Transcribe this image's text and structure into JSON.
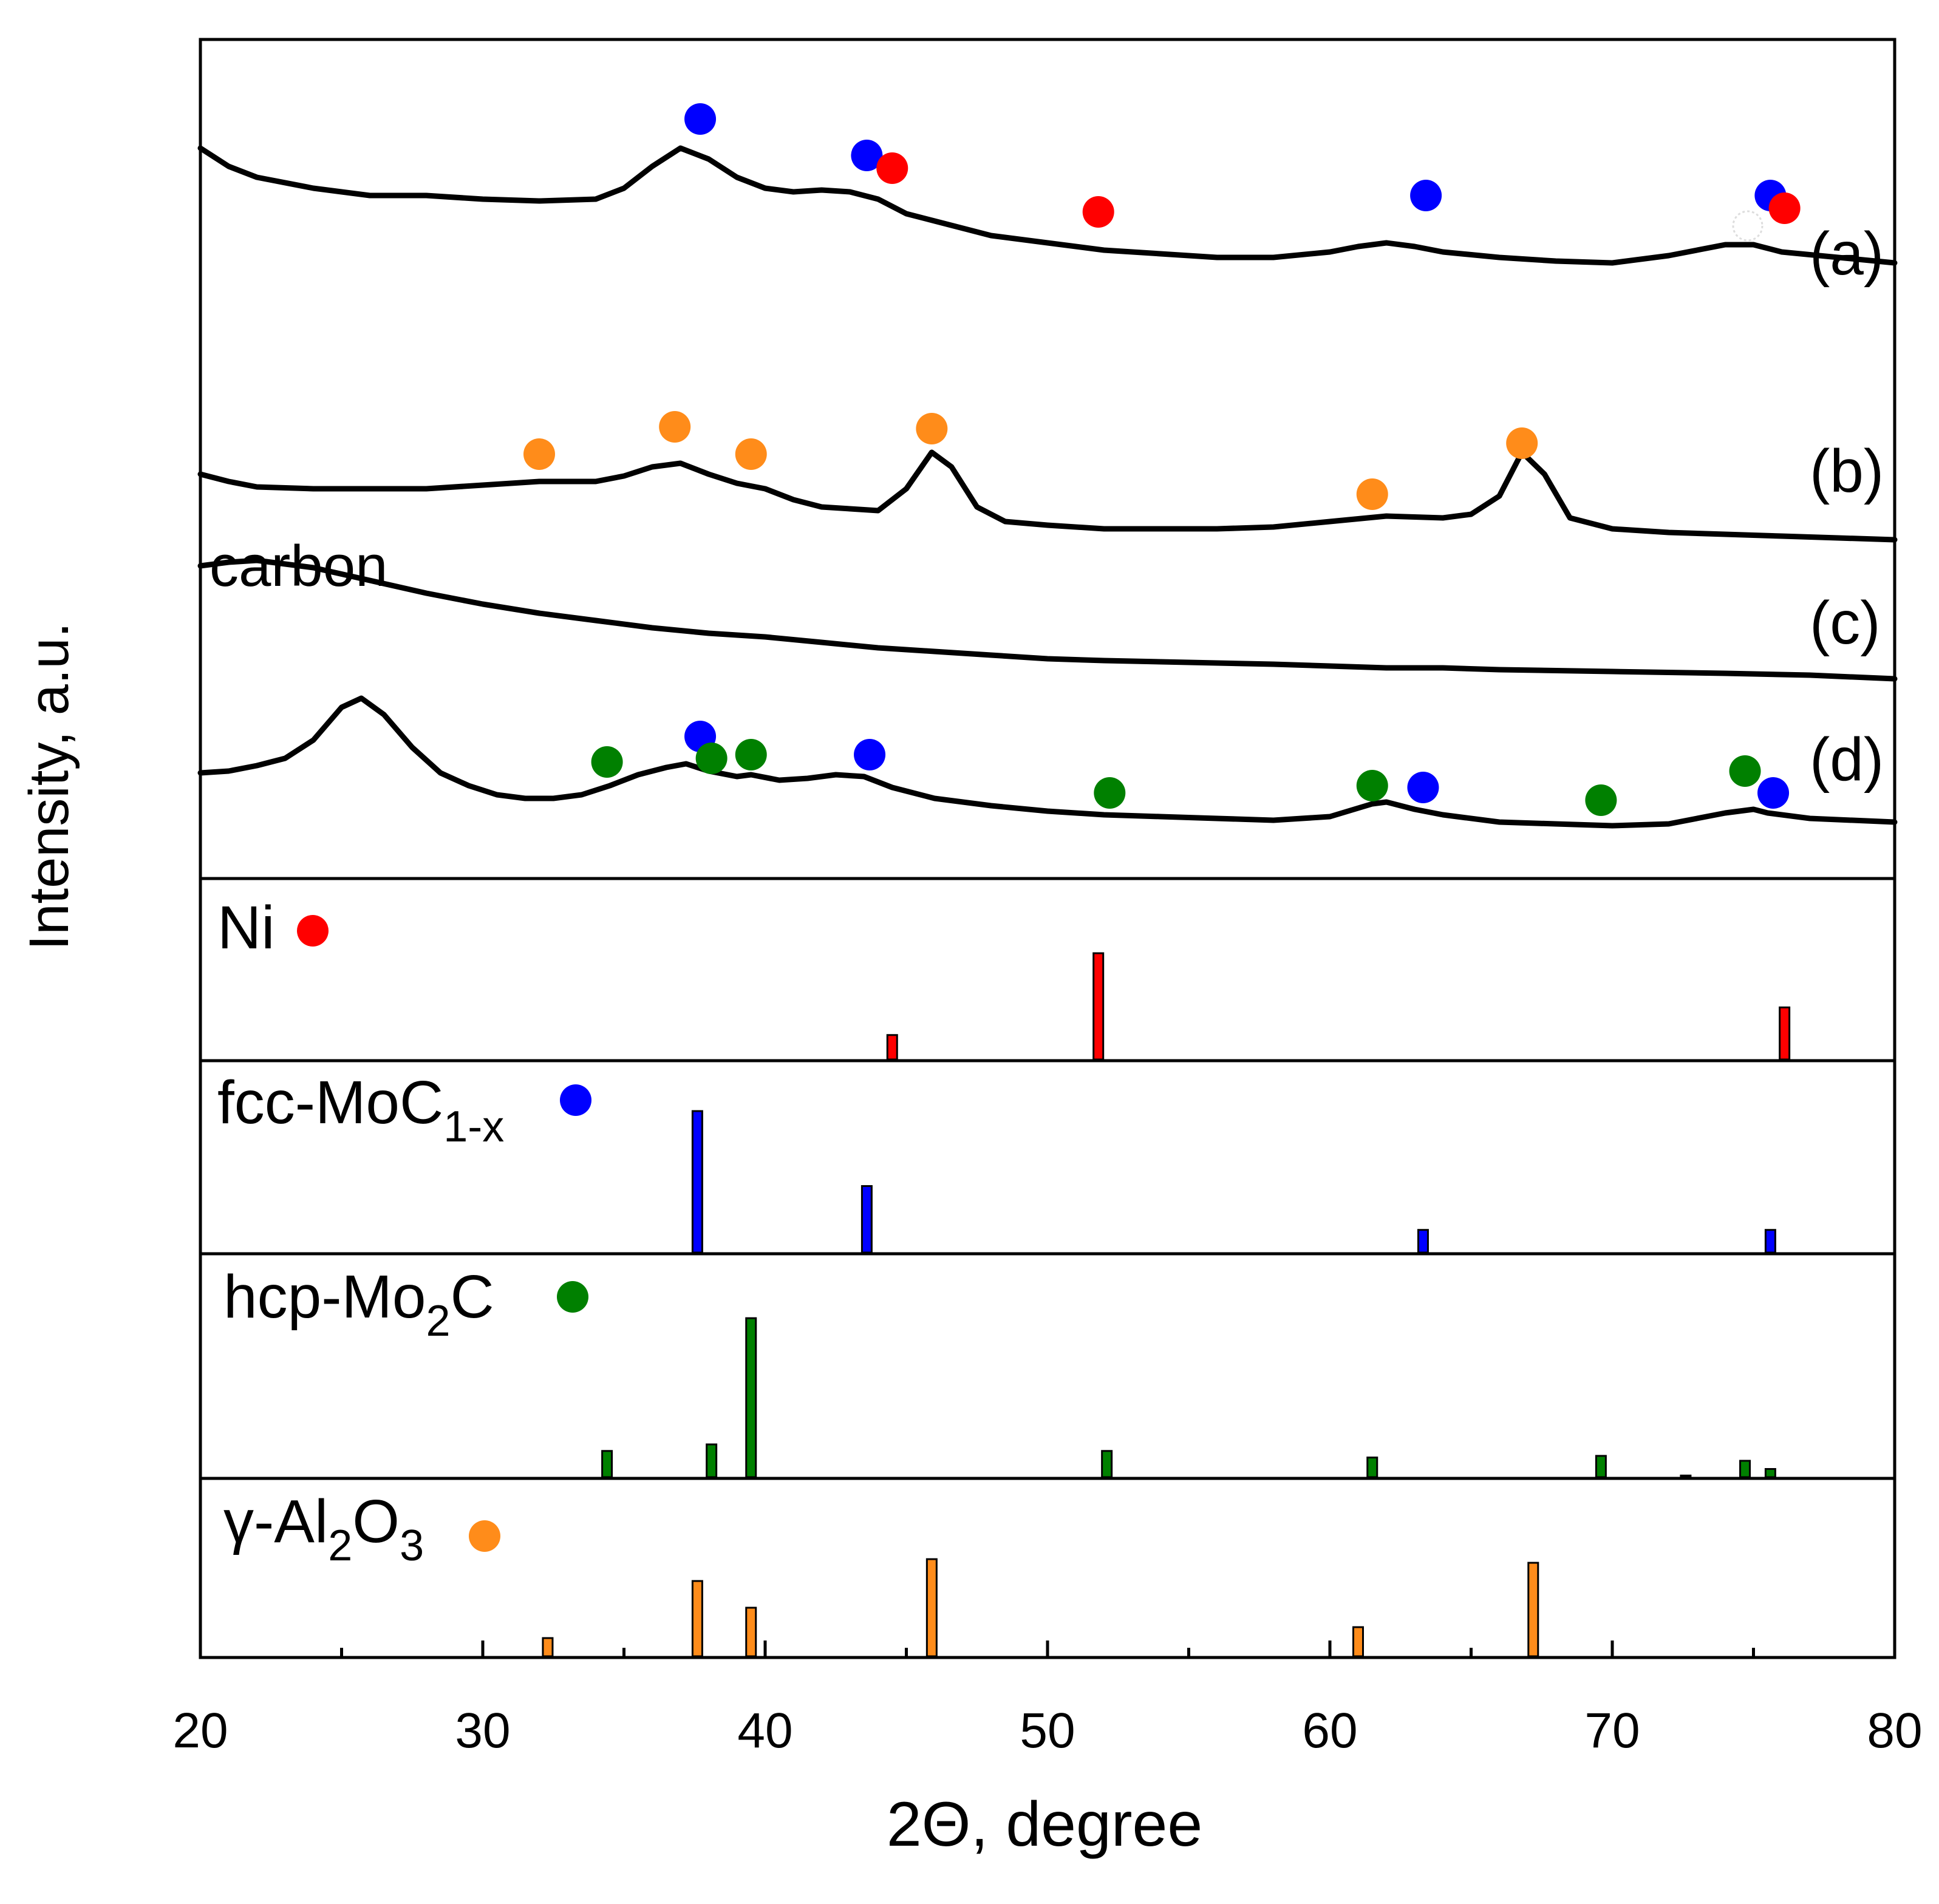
{
  "chart_data": {
    "type": "line",
    "xlabel": "2Θ, degree",
    "ylabel": "Intensity, a.u.",
    "xlim": [
      20,
      80
    ],
    "xticks": [
      "20",
      "30",
      "40",
      "50",
      "60",
      "70",
      "80"
    ],
    "annotation": "carbon",
    "colors": {
      "ni": "#ff0000",
      "fcc": "#0000ff",
      "hcp": "#008000",
      "al2o3": "#ff8c1a",
      "curve": "#000000"
    },
    "curves": [
      {
        "label": "(a)",
        "points": [
          [
            20,
            0.91
          ],
          [
            21,
            0.86
          ],
          [
            22,
            0.83
          ],
          [
            24,
            0.8
          ],
          [
            26,
            0.78
          ],
          [
            28,
            0.78
          ],
          [
            30,
            0.77
          ],
          [
            32,
            0.765
          ],
          [
            34,
            0.77
          ],
          [
            35,
            0.8
          ],
          [
            36,
            0.86
          ],
          [
            37,
            0.91
          ],
          [
            38,
            0.88
          ],
          [
            39,
            0.83
          ],
          [
            40,
            0.8
          ],
          [
            41,
            0.79
          ],
          [
            42,
            0.795
          ],
          [
            43,
            0.79
          ],
          [
            44,
            0.77
          ],
          [
            45,
            0.73
          ],
          [
            46,
            0.71
          ],
          [
            47,
            0.69
          ],
          [
            48,
            0.67
          ],
          [
            50,
            0.65
          ],
          [
            52,
            0.63
          ],
          [
            54,
            0.62
          ],
          [
            56,
            0.61
          ],
          [
            58,
            0.61
          ],
          [
            60,
            0.625
          ],
          [
            61,
            0.64
          ],
          [
            62,
            0.65
          ],
          [
            63,
            0.64
          ],
          [
            64,
            0.625
          ],
          [
            66,
            0.61
          ],
          [
            68,
            0.6
          ],
          [
            70,
            0.595
          ],
          [
            72,
            0.615
          ],
          [
            73,
            0.63
          ],
          [
            74,
            0.645
          ],
          [
            75,
            0.645
          ],
          [
            76,
            0.625
          ],
          [
            78,
            0.61
          ],
          [
            80,
            0.595
          ]
        ],
        "markers": [
          {
            "x": 37.7,
            "y": 0.99,
            "phase": "fcc"
          },
          {
            "x": 43.6,
            "y": 0.89,
            "phase": "fcc"
          },
          {
            "x": 44.5,
            "y": 0.855,
            "phase": "ni"
          },
          {
            "x": 51.8,
            "y": 0.735,
            "phase": "ni"
          },
          {
            "x": 63.4,
            "y": 0.78,
            "phase": "fcc"
          },
          {
            "x": 75.6,
            "y": 0.78,
            "phase": "fcc"
          },
          {
            "x": 76.1,
            "y": 0.745,
            "phase": "ni"
          }
        ]
      },
      {
        "label": "(b)",
        "points": [
          [
            20,
            0.49
          ],
          [
            21,
            0.47
          ],
          [
            22,
            0.455
          ],
          [
            24,
            0.45
          ],
          [
            26,
            0.45
          ],
          [
            28,
            0.45
          ],
          [
            30,
            0.46
          ],
          [
            32,
            0.47
          ],
          [
            34,
            0.47
          ],
          [
            35,
            0.485
          ],
          [
            36,
            0.51
          ],
          [
            37,
            0.52
          ],
          [
            38,
            0.49
          ],
          [
            39,
            0.465
          ],
          [
            40,
            0.45
          ],
          [
            41,
            0.42
          ],
          [
            42,
            0.4
          ],
          [
            43,
            0.395
          ],
          [
            44,
            0.39
          ],
          [
            45,
            0.45
          ],
          [
            45.9,
            0.55
          ],
          [
            46.6,
            0.51
          ],
          [
            47.5,
            0.4
          ],
          [
            48.5,
            0.36
          ],
          [
            50,
            0.35
          ],
          [
            52,
            0.34
          ],
          [
            54,
            0.34
          ],
          [
            56,
            0.34
          ],
          [
            58,
            0.345
          ],
          [
            60,
            0.36
          ],
          [
            62,
            0.375
          ],
          [
            64,
            0.37
          ],
          [
            65,
            0.38
          ],
          [
            66,
            0.43
          ],
          [
            66.8,
            0.55
          ],
          [
            67.6,
            0.49
          ],
          [
            68.5,
            0.37
          ],
          [
            70,
            0.34
          ],
          [
            72,
            0.33
          ],
          [
            74,
            0.325
          ],
          [
            76,
            0.32
          ],
          [
            78,
            0.315
          ],
          [
            80,
            0.31
          ]
        ],
        "markers": [
          {
            "x": 32.0,
            "y": 0.545,
            "phase": "al2o3"
          },
          {
            "x": 36.8,
            "y": 0.62,
            "phase": "al2o3"
          },
          {
            "x": 39.5,
            "y": 0.545,
            "phase": "al2o3"
          },
          {
            "x": 45.9,
            "y": 0.615,
            "phase": "al2o3"
          },
          {
            "x": 61.5,
            "y": 0.435,
            "phase": "al2o3"
          },
          {
            "x": 66.8,
            "y": 0.575,
            "phase": "al2o3"
          }
        ]
      },
      {
        "label": "(c)",
        "points": [
          [
            20,
            0.43
          ],
          [
            21,
            0.44
          ],
          [
            22,
            0.445
          ],
          [
            24,
            0.425
          ],
          [
            26,
            0.39
          ],
          [
            28,
            0.355
          ],
          [
            30,
            0.325
          ],
          [
            32,
            0.3
          ],
          [
            34,
            0.28
          ],
          [
            36,
            0.26
          ],
          [
            38,
            0.245
          ],
          [
            40,
            0.235
          ],
          [
            42,
            0.22
          ],
          [
            44,
            0.205
          ],
          [
            46,
            0.195
          ],
          [
            48,
            0.185
          ],
          [
            50,
            0.175
          ],
          [
            52,
            0.17
          ],
          [
            55,
            0.165
          ],
          [
            58,
            0.16
          ],
          [
            60,
            0.155
          ],
          [
            62,
            0.15
          ],
          [
            64,
            0.15
          ],
          [
            66,
            0.145
          ],
          [
            70,
            0.14
          ],
          [
            74,
            0.135
          ],
          [
            77,
            0.13
          ],
          [
            80,
            0.12
          ]
        ],
        "markers": []
      },
      {
        "label": "(d)",
        "points": [
          [
            20,
            0.07
          ],
          [
            21,
            0.075
          ],
          [
            22,
            0.09
          ],
          [
            23,
            0.11
          ],
          [
            24,
            0.16
          ],
          [
            25,
            0.25
          ],
          [
            25.7,
            0.275
          ],
          [
            26.5,
            0.23
          ],
          [
            27.5,
            0.14
          ],
          [
            28.5,
            0.07
          ],
          [
            29.5,
            0.035
          ],
          [
            30.5,
            0.01
          ],
          [
            31.5,
            0.0
          ],
          [
            32.5,
            0.0
          ],
          [
            33.5,
            0.01
          ],
          [
            34.5,
            0.035
          ],
          [
            35.5,
            0.065
          ],
          [
            36.5,
            0.085
          ],
          [
            37.2,
            0.095
          ],
          [
            38,
            0.075
          ],
          [
            39,
            0.06
          ],
          [
            39.5,
            0.065
          ],
          [
            40.5,
            0.05
          ],
          [
            41.5,
            0.055
          ],
          [
            42.5,
            0.065
          ],
          [
            43.5,
            0.06
          ],
          [
            44.5,
            0.03
          ],
          [
            46,
            0.0
          ],
          [
            48,
            -0.02
          ],
          [
            50,
            -0.035
          ],
          [
            52,
            -0.045
          ],
          [
            54,
            -0.05
          ],
          [
            56,
            -0.055
          ],
          [
            58,
            -0.06
          ],
          [
            60,
            -0.05
          ],
          [
            61.5,
            -0.015
          ],
          [
            62,
            -0.01
          ],
          [
            63,
            -0.03
          ],
          [
            64,
            -0.045
          ],
          [
            66,
            -0.065
          ],
          [
            68,
            -0.07
          ],
          [
            70,
            -0.075
          ],
          [
            72,
            -0.07
          ],
          [
            73,
            -0.055
          ],
          [
            74,
            -0.04
          ],
          [
            75,
            -0.03
          ],
          [
            75.5,
            -0.04
          ],
          [
            77,
            -0.055
          ],
          [
            80,
            -0.065
          ]
        ],
        "markers": [
          {
            "x": 34.4,
            "y": 0.1,
            "phase": "hcp"
          },
          {
            "x": 37.7,
            "y": 0.17,
            "phase": "fcc"
          },
          {
            "x": 38.1,
            "y": 0.11,
            "phase": "hcp"
          },
          {
            "x": 39.5,
            "y": 0.12,
            "phase": "hcp"
          },
          {
            "x": 43.7,
            "y": 0.12,
            "phase": "fcc"
          },
          {
            "x": 52.2,
            "y": 0.015,
            "phase": "hcp"
          },
          {
            "x": 61.5,
            "y": 0.035,
            "phase": "hcp"
          },
          {
            "x": 63.3,
            "y": 0.03,
            "phase": "fcc"
          },
          {
            "x": 69.6,
            "y": -0.005,
            "phase": "hcp"
          },
          {
            "x": 74.7,
            "y": 0.075,
            "phase": "hcp"
          },
          {
            "x": 75.7,
            "y": 0.015,
            "phase": "fcc"
          }
        ]
      }
    ],
    "references": [
      {
        "name": "Ni",
        "phase": "ni",
        "peaks": [
          [
            44.5,
            0.23
          ],
          [
            51.8,
            1.0
          ],
          [
            76.1,
            0.49
          ]
        ]
      },
      {
        "name": "fcc-MoC",
        "sub": "1-x",
        "phase": "fcc",
        "peaks": [
          [
            37.6,
            1.0
          ],
          [
            43.6,
            0.47
          ],
          [
            63.3,
            0.16
          ],
          [
            75.6,
            0.16
          ]
        ]
      },
      {
        "name": "hcp-Mo",
        "sub": "2",
        "suffix": "C",
        "phase": "hcp",
        "peaks": [
          [
            34.4,
            0.16
          ],
          [
            38.1,
            0.2
          ],
          [
            39.5,
            0.97
          ],
          [
            52.1,
            0.16
          ],
          [
            61.5,
            0.12
          ],
          [
            69.6,
            0.13
          ],
          [
            72.6,
            0.01
          ],
          [
            74.7,
            0.1
          ],
          [
            75.6,
            0.05
          ]
        ]
      },
      {
        "name": "γ-Al",
        "sub": "2",
        "mid": "O",
        "sub2": "3",
        "phase": "al2o3",
        "peaks": [
          [
            32.3,
            0.15
          ],
          [
            37.6,
            0.62
          ],
          [
            39.5,
            0.4
          ],
          [
            45.9,
            0.8
          ],
          [
            61.0,
            0.24
          ],
          [
            67.2,
            0.77
          ]
        ]
      }
    ]
  }
}
